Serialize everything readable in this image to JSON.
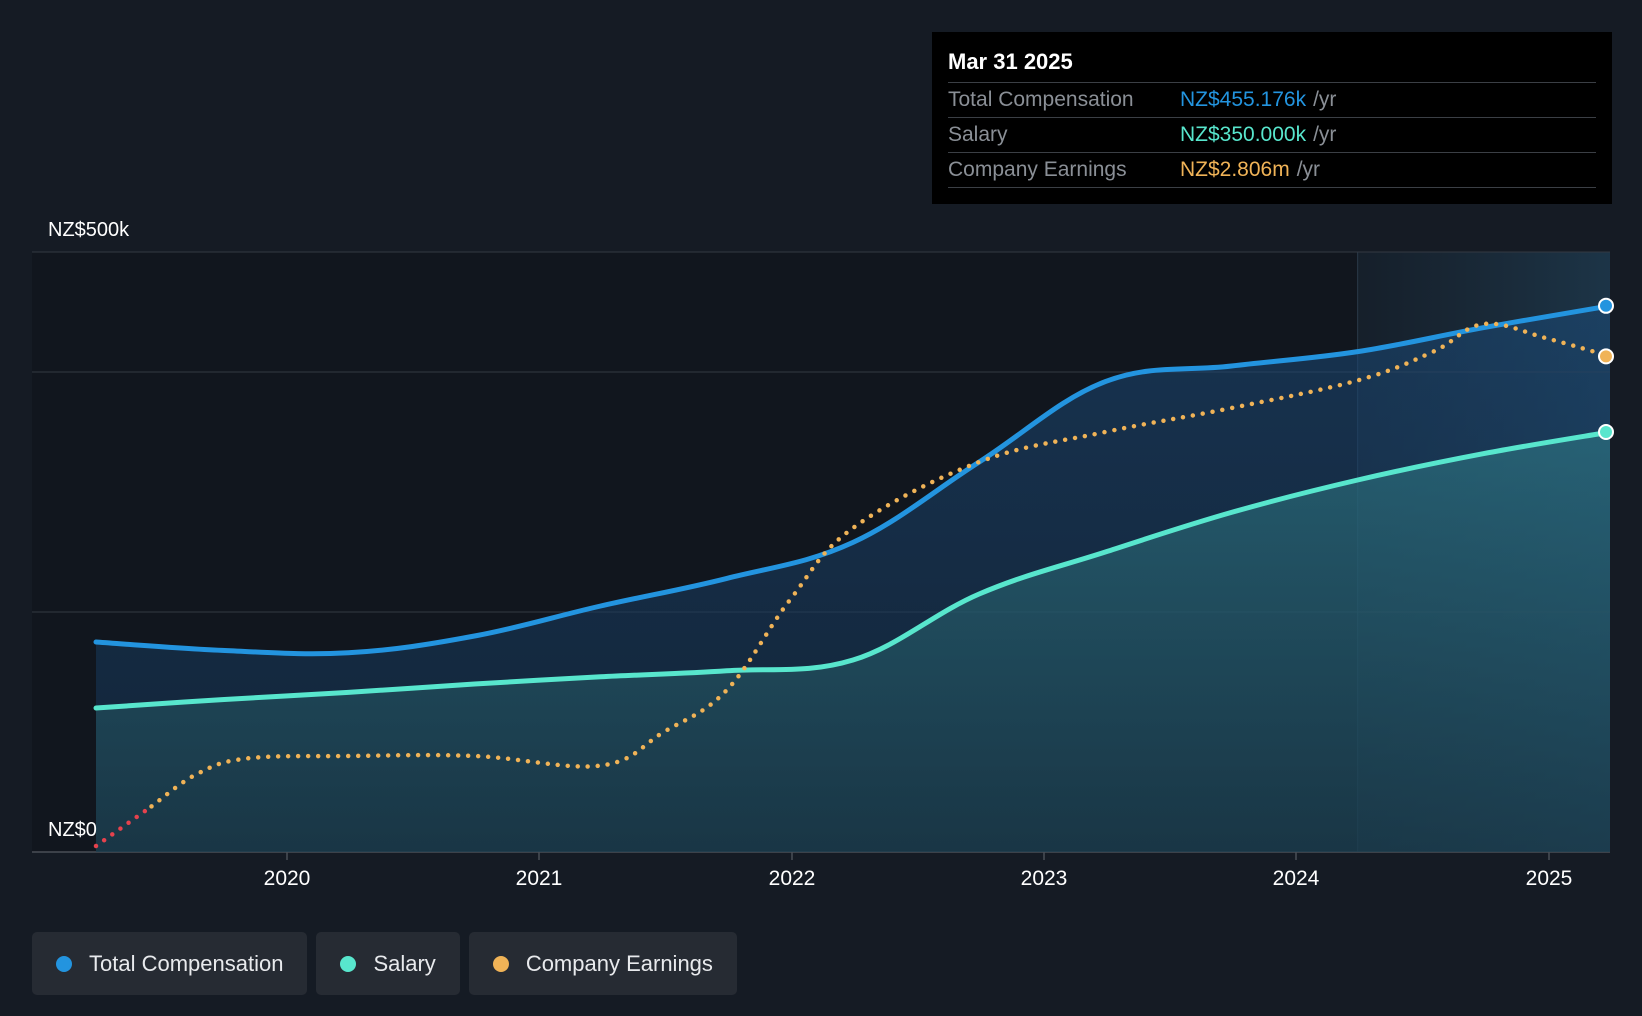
{
  "chart_data": {
    "type": "area",
    "y_axis": {
      "top_label": "NZ$500k",
      "bottom_label": "NZ$0",
      "ylim": [
        0,
        500
      ],
      "gridlines": [
        0,
        200,
        400,
        500
      ],
      "unit": "NZ$k"
    },
    "x_axis": {
      "ticks": [
        "2020",
        "2021",
        "2022",
        "2023",
        "2024",
        "2025"
      ],
      "xlim": [
        2019.25,
        2025.25
      ]
    },
    "forecast_region_start": 2024.25,
    "series": [
      {
        "name": "Total Compensation",
        "color": "#2394df",
        "style": "solid-area",
        "points": [
          [
            2019.25,
            175
          ],
          [
            2019.75,
            168
          ],
          [
            2020.25,
            166
          ],
          [
            2020.75,
            180
          ],
          [
            2021.25,
            205
          ],
          [
            2021.75,
            228
          ],
          [
            2022.25,
            258
          ],
          [
            2022.75,
            325
          ],
          [
            2023.25,
            392
          ],
          [
            2023.75,
            405
          ],
          [
            2024.25,
            417
          ],
          [
            2024.75,
            437
          ],
          [
            2025.25,
            455.176
          ]
        ]
      },
      {
        "name": "Salary",
        "color": "#58e6cd",
        "style": "solid-area",
        "points": [
          [
            2019.25,
            120
          ],
          [
            2019.75,
            127
          ],
          [
            2020.25,
            133
          ],
          [
            2020.75,
            140
          ],
          [
            2021.25,
            146
          ],
          [
            2021.75,
            151
          ],
          [
            2022.25,
            160
          ],
          [
            2022.75,
            215
          ],
          [
            2023.25,
            250
          ],
          [
            2023.75,
            283
          ],
          [
            2024.25,
            310
          ],
          [
            2024.75,
            332
          ],
          [
            2025.25,
            350
          ]
        ]
      },
      {
        "name": "Company Earnings",
        "color": "#f0b357",
        "style": "dotted",
        "negative_color": "#e5424d",
        "points": [
          [
            2019.25,
            5
          ],
          [
            2019.65,
            65
          ],
          [
            2019.85,
            78
          ],
          [
            2020.25,
            80
          ],
          [
            2020.75,
            80
          ],
          [
            2021.25,
            72
          ],
          [
            2021.5,
            100
          ],
          [
            2021.75,
            135
          ],
          [
            2022.0,
            210
          ],
          [
            2022.25,
            270
          ],
          [
            2022.75,
            325
          ],
          [
            2023.25,
            350
          ],
          [
            2023.75,
            370
          ],
          [
            2024.25,
            393
          ],
          [
            2024.55,
            417
          ],
          [
            2024.75,
            440
          ],
          [
            2025.0,
            428
          ],
          [
            2025.25,
            413
          ]
        ]
      }
    ],
    "legend": {
      "placement": "bottom-left",
      "items": [
        "Total Compensation",
        "Salary",
        "Company Earnings"
      ]
    }
  },
  "tooltip": {
    "date": "Mar 31 2025",
    "rows": [
      {
        "label": "Total Compensation",
        "value": "NZ$455.176k",
        "unit": "/yr",
        "color": "#2394df"
      },
      {
        "label": "Salary",
        "value": "NZ$350.000k",
        "unit": "/yr",
        "color": "#58e6cd"
      },
      {
        "label": "Company Earnings",
        "value": "NZ$2.806m",
        "unit": "/yr",
        "color": "#f0b357"
      }
    ]
  },
  "legend": [
    {
      "label": "Total Compensation",
      "color": "#2394df"
    },
    {
      "label": "Salary",
      "color": "#58e6cd"
    },
    {
      "label": "Company Earnings",
      "color": "#f0b357"
    }
  ]
}
